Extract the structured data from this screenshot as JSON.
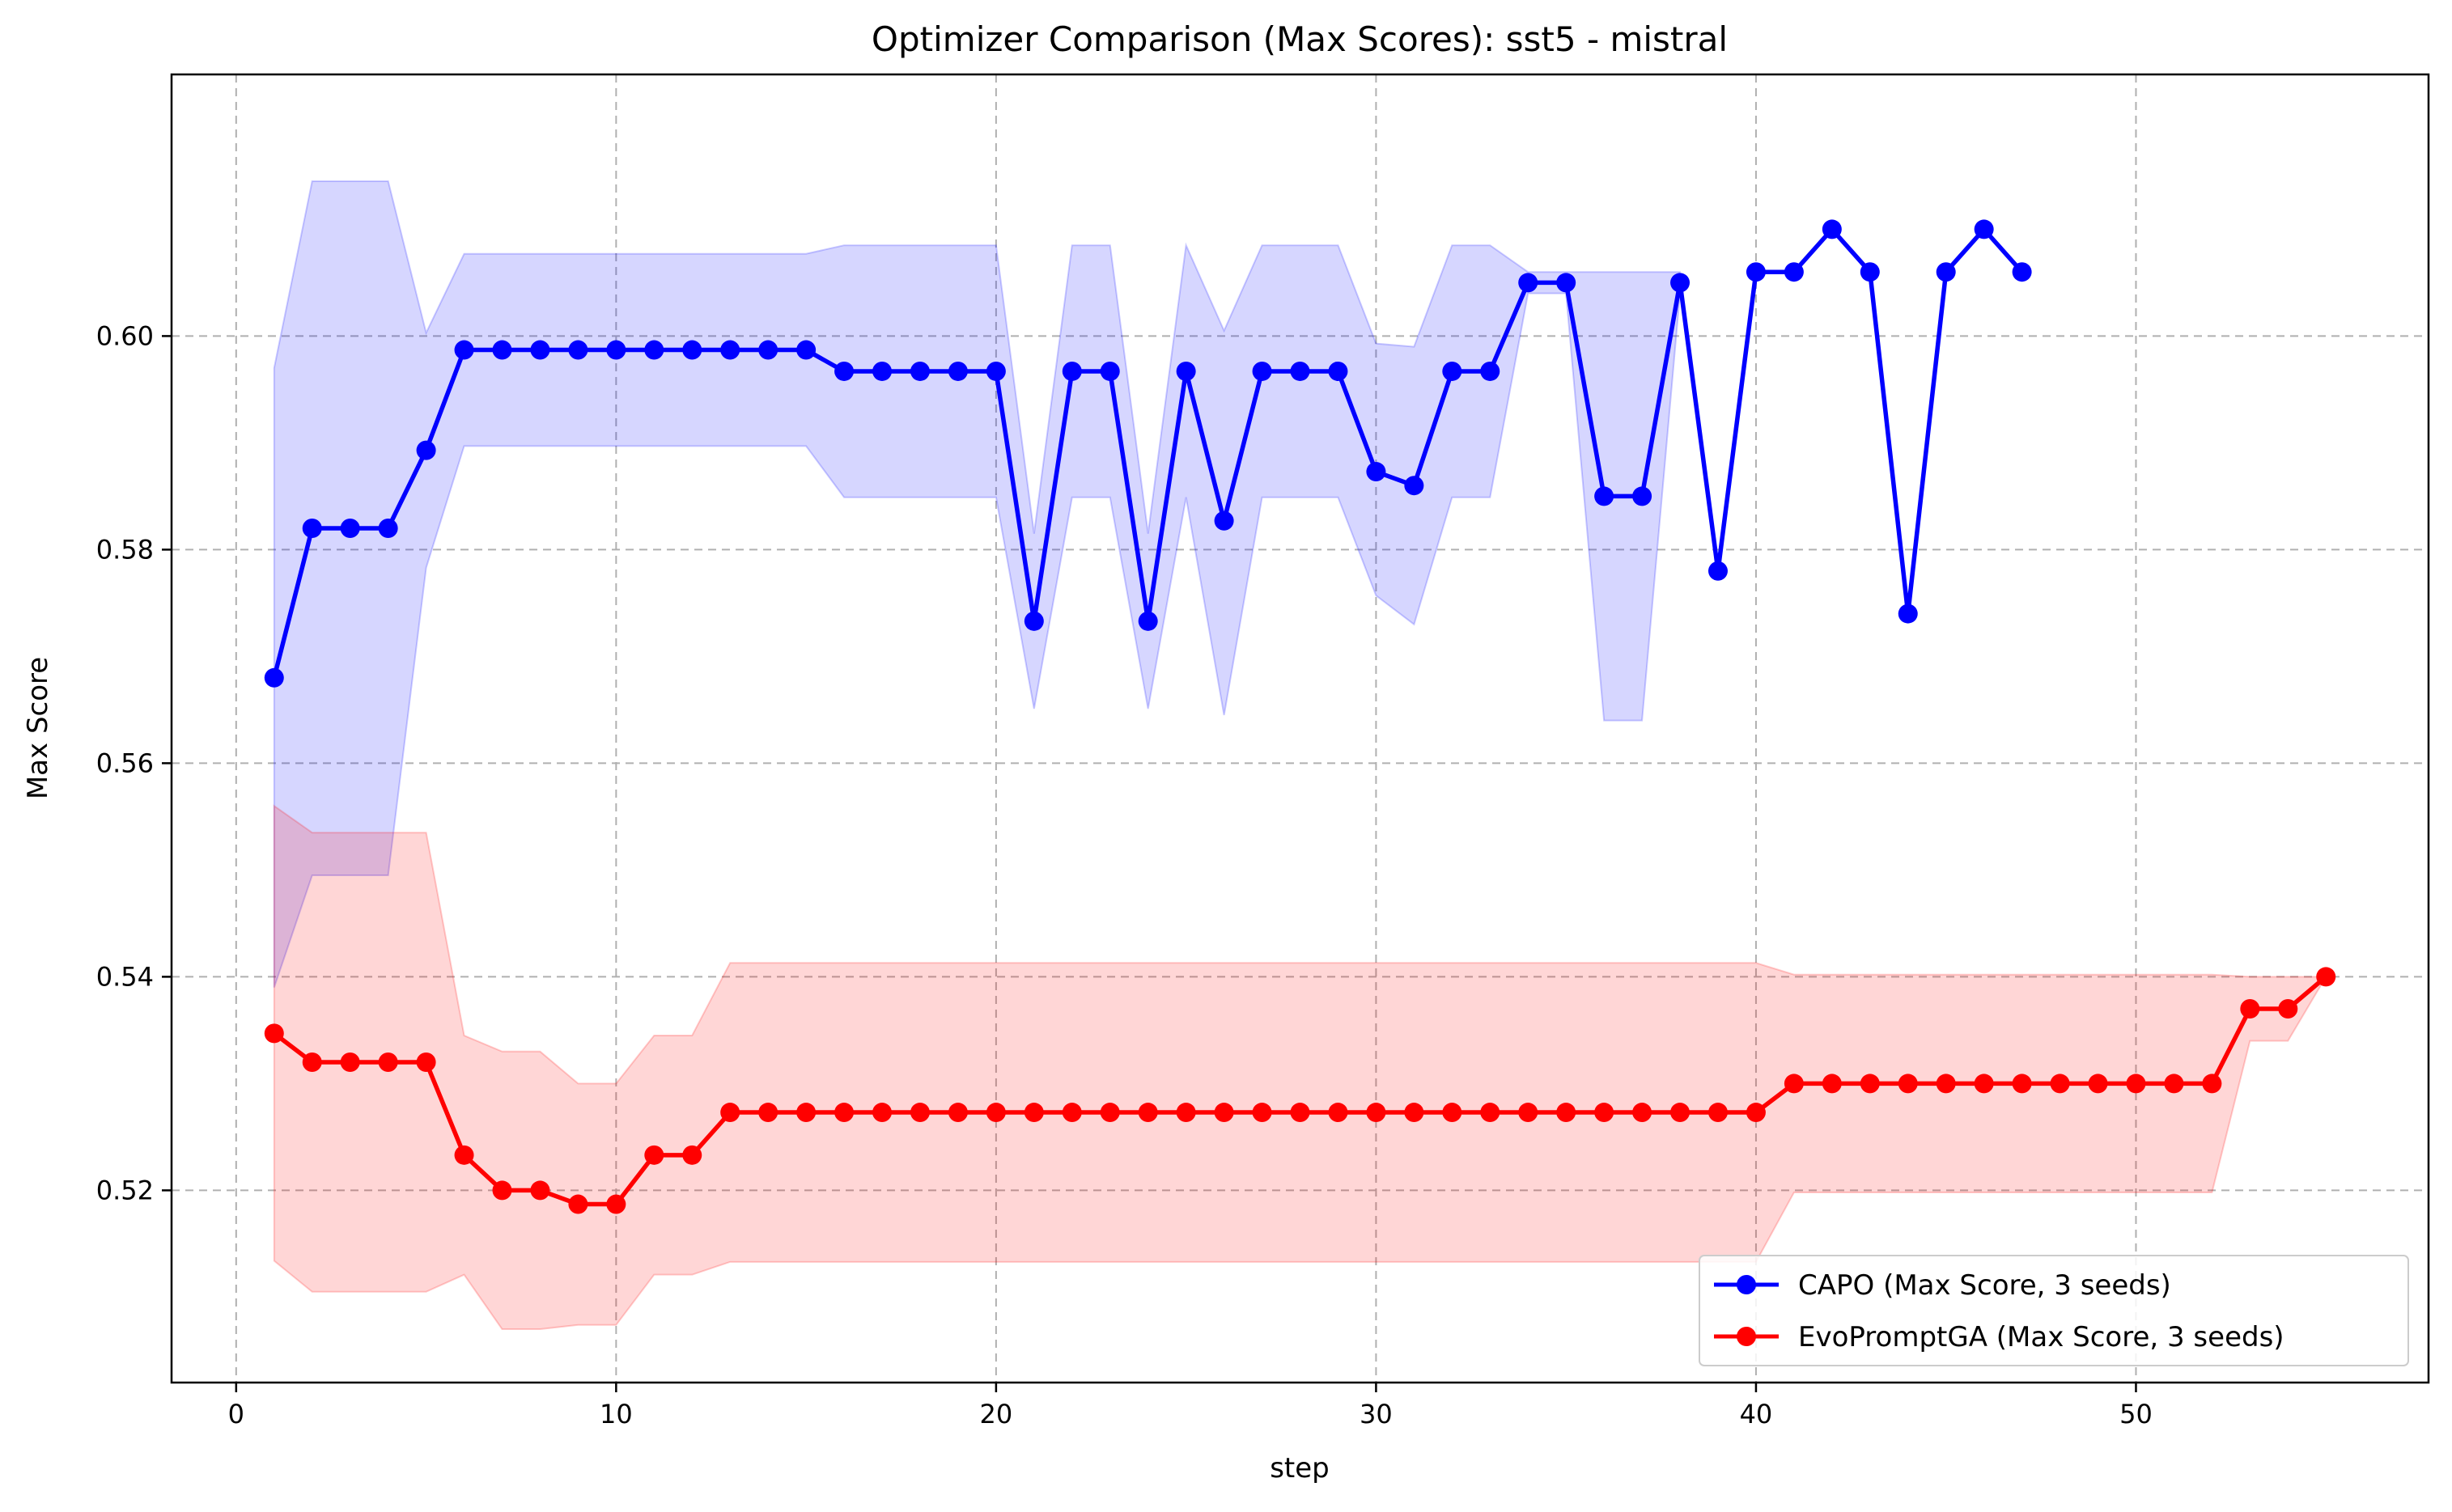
{
  "chart_data": {
    "type": "line",
    "title": "Optimizer Comparison (Max Scores): sst5 - mistral",
    "xlabel": "step",
    "ylabel": "Max Score",
    "xlim": [
      -1.7,
      57.7
    ],
    "ylim": [
      0.502,
      0.6245
    ],
    "xticks": [
      "0",
      "10",
      "20",
      "30",
      "40",
      "50"
    ],
    "xtick_values": [
      0,
      10,
      20,
      30,
      40,
      50
    ],
    "yticks": [
      "0.52",
      "0.54",
      "0.56",
      "0.58",
      "0.60"
    ],
    "ytick_values": [
      0.52,
      0.54,
      0.56,
      0.58,
      0.6
    ],
    "grid": true,
    "legend_position": "lower-right",
    "series": [
      {
        "name": "CAPO (Max Score, 3 seeds)",
        "color": "#0000ff",
        "band_color": "#0000ff",
        "x": [
          1,
          2,
          3,
          4,
          5,
          6,
          7,
          8,
          9,
          10,
          11,
          12,
          13,
          14,
          15,
          16,
          17,
          18,
          19,
          20,
          21,
          22,
          23,
          24,
          25,
          26,
          27,
          28,
          29,
          30,
          31,
          32,
          33,
          34,
          35,
          36,
          37,
          38,
          39,
          40,
          41,
          42,
          43,
          44,
          45,
          46,
          47
        ],
        "y": [
          0.568,
          0.582,
          0.582,
          0.582,
          0.5893,
          0.5987,
          0.5987,
          0.5987,
          0.5987,
          0.5987,
          0.5987,
          0.5987,
          0.5987,
          0.5987,
          0.5987,
          0.5967,
          0.5967,
          0.5967,
          0.5967,
          0.5967,
          0.5733,
          0.5967,
          0.5967,
          0.5733,
          0.5967,
          0.5827,
          0.5967,
          0.5967,
          0.5967,
          0.5873,
          0.586,
          0.5967,
          0.5967,
          0.605,
          0.605,
          0.585,
          0.585,
          0.605,
          0.578,
          0.606,
          0.606,
          0.61,
          0.606,
          0.574,
          0.606,
          0.61,
          0.606
        ],
        "band_x": [
          1,
          2,
          3,
          4,
          5,
          6,
          7,
          8,
          9,
          10,
          11,
          12,
          13,
          14,
          15,
          16,
          17,
          18,
          19,
          20,
          21,
          22,
          23,
          24,
          25,
          26,
          27,
          28,
          29,
          30,
          31,
          32,
          33,
          34,
          35,
          36,
          37,
          38
        ],
        "band_upper": [
          0.597,
          0.6145,
          0.6145,
          0.6145,
          0.6003,
          0.6077,
          0.6077,
          0.6077,
          0.6077,
          0.6077,
          0.6077,
          0.6077,
          0.6077,
          0.6077,
          0.6077,
          0.6085,
          0.6085,
          0.6085,
          0.6085,
          0.6085,
          0.5815,
          0.6085,
          0.6085,
          0.5815,
          0.6085,
          0.6005,
          0.6085,
          0.6085,
          0.6085,
          0.5993,
          0.599,
          0.6085,
          0.6085,
          0.606,
          0.606,
          0.606,
          0.606,
          0.606
        ],
        "band_lower": [
          0.539,
          0.5495,
          0.5495,
          0.5495,
          0.5783,
          0.5897,
          0.5897,
          0.5897,
          0.5897,
          0.5897,
          0.5897,
          0.5897,
          0.5897,
          0.5897,
          0.5897,
          0.5849,
          0.5849,
          0.5849,
          0.5849,
          0.5849,
          0.5651,
          0.5849,
          0.5849,
          0.5651,
          0.5849,
          0.5645,
          0.5849,
          0.5849,
          0.5849,
          0.5757,
          0.573,
          0.5849,
          0.5849,
          0.604,
          0.604,
          0.564,
          0.564,
          0.604
        ]
      },
      {
        "name": "EvoPromptGA (Max Score, 3 seeds)",
        "color": "#ff0000",
        "band_color": "#ff0000",
        "x": [
          1,
          2,
          3,
          4,
          5,
          6,
          7,
          8,
          9,
          10,
          11,
          12,
          13,
          14,
          15,
          16,
          17,
          18,
          19,
          20,
          21,
          22,
          23,
          24,
          25,
          26,
          27,
          28,
          29,
          30,
          31,
          32,
          33,
          34,
          35,
          36,
          37,
          38,
          39,
          40,
          41,
          42,
          43,
          44,
          45,
          46,
          47,
          48,
          49,
          50,
          51,
          52,
          53,
          54,
          55
        ],
        "y": [
          0.5347,
          0.532,
          0.532,
          0.532,
          0.532,
          0.5233,
          0.52,
          0.52,
          0.5187,
          0.5187,
          0.5233,
          0.5233,
          0.5273,
          0.5273,
          0.5273,
          0.5273,
          0.5273,
          0.5273,
          0.5273,
          0.5273,
          0.5273,
          0.5273,
          0.5273,
          0.5273,
          0.5273,
          0.5273,
          0.5273,
          0.5273,
          0.5273,
          0.5273,
          0.5273,
          0.5273,
          0.5273,
          0.5273,
          0.5273,
          0.5273,
          0.5273,
          0.5273,
          0.5273,
          0.5273,
          0.53,
          0.53,
          0.53,
          0.53,
          0.53,
          0.53,
          0.53,
          0.53,
          0.53,
          0.53,
          0.53,
          0.53,
          0.537,
          0.537,
          0.54
        ],
        "band_upper": [
          0.556,
          0.5535,
          0.5535,
          0.5535,
          0.5535,
          0.5345,
          0.533,
          0.533,
          0.53,
          0.53,
          0.5345,
          0.5345,
          0.5413,
          0.5413,
          0.5413,
          0.5413,
          0.5413,
          0.5413,
          0.5413,
          0.5413,
          0.5413,
          0.5413,
          0.5413,
          0.5413,
          0.5413,
          0.5413,
          0.5413,
          0.5413,
          0.5413,
          0.5413,
          0.5413,
          0.5413,
          0.5413,
          0.5413,
          0.5413,
          0.5413,
          0.5413,
          0.5413,
          0.5413,
          0.5413,
          0.5402,
          0.5402,
          0.5402,
          0.5402,
          0.5402,
          0.5402,
          0.5402,
          0.5402,
          0.5402,
          0.5402,
          0.5402,
          0.5402,
          0.54,
          0.54,
          0.54
        ],
        "band_lower": [
          0.5134,
          0.5105,
          0.5105,
          0.5105,
          0.5105,
          0.5121,
          0.507,
          0.507,
          0.5074,
          0.5074,
          0.5121,
          0.5121,
          0.5133,
          0.5133,
          0.5133,
          0.5133,
          0.5133,
          0.5133,
          0.5133,
          0.5133,
          0.5133,
          0.5133,
          0.5133,
          0.5133,
          0.5133,
          0.5133,
          0.5133,
          0.5133,
          0.5133,
          0.5133,
          0.5133,
          0.5133,
          0.5133,
          0.5133,
          0.5133,
          0.5133,
          0.5133,
          0.5133,
          0.5133,
          0.5133,
          0.5198,
          0.5198,
          0.5198,
          0.5198,
          0.5198,
          0.5198,
          0.5198,
          0.5198,
          0.5198,
          0.5198,
          0.5198,
          0.5198,
          0.534,
          0.534,
          0.54
        ]
      }
    ]
  }
}
